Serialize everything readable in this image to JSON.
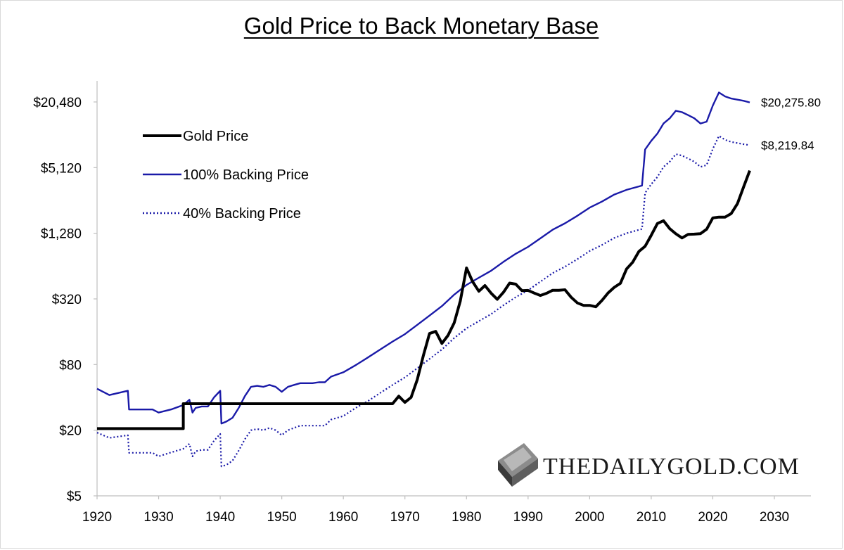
{
  "chart_data": {
    "type": "line",
    "title": "Gold Price to Back Monetary Base",
    "xlabel": "",
    "ylabel": "",
    "y_scale": "log2",
    "xlim": [
      1920,
      2035
    ],
    "ylim": [
      5,
      40960
    ],
    "x_ticks": [
      1920,
      1930,
      1940,
      1950,
      1960,
      1970,
      1980,
      1990,
      2000,
      2010,
      2020,
      2030
    ],
    "y_ticks": [
      5,
      20,
      80,
      320,
      1280,
      5120,
      20480
    ],
    "y_tick_labels": [
      "$5",
      "$20",
      "$80",
      "$320",
      "$1,280",
      "$5,120",
      "$20,480"
    ],
    "legend_position": "upper-left",
    "grid": false,
    "series": [
      {
        "name": "Gold Price",
        "color": "#000000",
        "style": "solid",
        "points": [
          [
            1920,
            20.67
          ],
          [
            1934,
            20.67
          ],
          [
            1934,
            35
          ],
          [
            1968,
            35
          ],
          [
            1969,
            41
          ],
          [
            1970,
            36
          ],
          [
            1971,
            40
          ],
          [
            1972,
            58
          ],
          [
            1973,
            97
          ],
          [
            1974,
            154
          ],
          [
            1975,
            161
          ],
          [
            1976,
            125
          ],
          [
            1977,
            148
          ],
          [
            1978,
            193
          ],
          [
            1979,
            307
          ],
          [
            1980,
            615
          ],
          [
            1981,
            460
          ],
          [
            1982,
            376
          ],
          [
            1983,
            424
          ],
          [
            1984,
            361
          ],
          [
            1985,
            317
          ],
          [
            1986,
            368
          ],
          [
            1987,
            447
          ],
          [
            1988,
            437
          ],
          [
            1989,
            381
          ],
          [
            1990,
            383
          ],
          [
            1991,
            362
          ],
          [
            1992,
            344
          ],
          [
            1993,
            360
          ],
          [
            1994,
            384
          ],
          [
            1995,
            384
          ],
          [
            1996,
            388
          ],
          [
            1997,
            331
          ],
          [
            1998,
            294
          ],
          [
            1999,
            279
          ],
          [
            2000,
            279
          ],
          [
            2001,
            271
          ],
          [
            2002,
            310
          ],
          [
            2003,
            363
          ],
          [
            2004,
            409
          ],
          [
            2005,
            445
          ],
          [
            2006,
            603
          ],
          [
            2007,
            695
          ],
          [
            2008,
            872
          ],
          [
            2009,
            972
          ],
          [
            2010,
            1225
          ],
          [
            2011,
            1571
          ],
          [
            2012,
            1669
          ],
          [
            2013,
            1411
          ],
          [
            2014,
            1266
          ],
          [
            2015,
            1160
          ],
          [
            2016,
            1250
          ],
          [
            2017,
            1257
          ],
          [
            2018,
            1268
          ],
          [
            2019,
            1393
          ],
          [
            2020,
            1770
          ],
          [
            2021,
            1799
          ],
          [
            2022,
            1800
          ],
          [
            2023,
            1940
          ],
          [
            2024,
            2390
          ],
          [
            2025,
            3400
          ],
          [
            2026,
            4800
          ]
        ]
      },
      {
        "name": "100% Backing Price",
        "color": "#1a1aa8",
        "style": "solid",
        "end_label": "$20,275.80",
        "points": [
          [
            1920,
            48
          ],
          [
            1922,
            42
          ],
          [
            1925,
            46
          ],
          [
            1925.2,
            31
          ],
          [
            1929,
            31
          ],
          [
            1930,
            29
          ],
          [
            1932,
            31
          ],
          [
            1934,
            34
          ],
          [
            1935,
            38
          ],
          [
            1935.5,
            29
          ],
          [
            1936,
            32
          ],
          [
            1937,
            33
          ],
          [
            1938,
            33
          ],
          [
            1939,
            40
          ],
          [
            1940,
            46
          ],
          [
            1940.2,
            23
          ],
          [
            1941,
            24
          ],
          [
            1942,
            26
          ],
          [
            1943,
            32
          ],
          [
            1944,
            41
          ],
          [
            1945,
            50
          ],
          [
            1946,
            51
          ],
          [
            1947,
            50
          ],
          [
            1948,
            52
          ],
          [
            1949,
            50
          ],
          [
            1950,
            45
          ],
          [
            1951,
            50
          ],
          [
            1952,
            52
          ],
          [
            1953,
            54
          ],
          [
            1954,
            54
          ],
          [
            1955,
            54
          ],
          [
            1956,
            55
          ],
          [
            1957,
            55
          ],
          [
            1958,
            62
          ],
          [
            1960,
            68
          ],
          [
            1962,
            79
          ],
          [
            1964,
            93
          ],
          [
            1966,
            110
          ],
          [
            1968,
            130
          ],
          [
            1970,
            152
          ],
          [
            1972,
            185
          ],
          [
            1974,
            225
          ],
          [
            1976,
            275
          ],
          [
            1978,
            350
          ],
          [
            1980,
            430
          ],
          [
            1982,
            500
          ],
          [
            1984,
            580
          ],
          [
            1986,
            700
          ],
          [
            1988,
            830
          ],
          [
            1990,
            960
          ],
          [
            1992,
            1150
          ],
          [
            1994,
            1380
          ],
          [
            1996,
            1580
          ],
          [
            1998,
            1850
          ],
          [
            2000,
            2200
          ],
          [
            2002,
            2500
          ],
          [
            2004,
            2900
          ],
          [
            2006,
            3200
          ],
          [
            2008.5,
            3500
          ],
          [
            2008.8,
            5500
          ],
          [
            2009,
            7500
          ],
          [
            2010,
            9000
          ],
          [
            2011,
            10500
          ],
          [
            2012,
            13000
          ],
          [
            2013,
            14500
          ],
          [
            2014,
            17000
          ],
          [
            2015,
            16500
          ],
          [
            2016,
            15500
          ],
          [
            2017,
            14500
          ],
          [
            2018,
            13000
          ],
          [
            2019,
            13500
          ],
          [
            2020,
            19000
          ],
          [
            2021,
            25000
          ],
          [
            2022,
            23000
          ],
          [
            2023,
            22000
          ],
          [
            2024,
            21500
          ],
          [
            2025,
            21000
          ],
          [
            2026,
            20275.8
          ]
        ]
      },
      {
        "name": "40% Backing Price",
        "color": "#1a1aa8",
        "style": "dotted",
        "end_label": "$8,219.84",
        "points": [
          [
            1920,
            19
          ],
          [
            1922,
            17
          ],
          [
            1925,
            18
          ],
          [
            1925.2,
            12.4
          ],
          [
            1929,
            12.4
          ],
          [
            1930,
            11.5
          ],
          [
            1932,
            12.5
          ],
          [
            1934,
            13.5
          ],
          [
            1935,
            15
          ],
          [
            1935.5,
            11.5
          ],
          [
            1936,
            12.8
          ],
          [
            1937,
            13.2
          ],
          [
            1938,
            13.2
          ],
          [
            1939,
            16
          ],
          [
            1940,
            18.5
          ],
          [
            1940.2,
            9.3
          ],
          [
            1941,
            9.6
          ],
          [
            1942,
            10.5
          ],
          [
            1943,
            13
          ],
          [
            1944,
            16.5
          ],
          [
            1945,
            20
          ],
          [
            1946,
            20.5
          ],
          [
            1947,
            20
          ],
          [
            1948,
            21
          ],
          [
            1949,
            20
          ],
          [
            1950,
            18
          ],
          [
            1951,
            20
          ],
          [
            1952,
            21
          ],
          [
            1953,
            22
          ],
          [
            1954,
            22
          ],
          [
            1955,
            22
          ],
          [
            1956,
            22
          ],
          [
            1957,
            22
          ],
          [
            1958,
            25
          ],
          [
            1960,
            27
          ],
          [
            1962,
            32
          ],
          [
            1964,
            37
          ],
          [
            1966,
            44
          ],
          [
            1968,
            52
          ],
          [
            1970,
            61
          ],
          [
            1972,
            74
          ],
          [
            1974,
            90
          ],
          [
            1976,
            110
          ],
          [
            1978,
            140
          ],
          [
            1980,
            172
          ],
          [
            1982,
            200
          ],
          [
            1984,
            232
          ],
          [
            1986,
            280
          ],
          [
            1988,
            332
          ],
          [
            1990,
            384
          ],
          [
            1992,
            460
          ],
          [
            1994,
            552
          ],
          [
            1996,
            632
          ],
          [
            1998,
            740
          ],
          [
            2000,
            880
          ],
          [
            2002,
            1000
          ],
          [
            2004,
            1160
          ],
          [
            2006,
            1280
          ],
          [
            2008.5,
            1400
          ],
          [
            2008.8,
            2200
          ],
          [
            2009,
            3000
          ],
          [
            2010,
            3600
          ],
          [
            2011,
            4200
          ],
          [
            2012,
            5200
          ],
          [
            2013,
            5800
          ],
          [
            2014,
            6800
          ],
          [
            2015,
            6600
          ],
          [
            2016,
            6200
          ],
          [
            2017,
            5800
          ],
          [
            2018,
            5200
          ],
          [
            2019,
            5400
          ],
          [
            2020,
            7600
          ],
          [
            2021,
            10000
          ],
          [
            2022,
            9200
          ],
          [
            2023,
            8800
          ],
          [
            2024,
            8600
          ],
          [
            2025,
            8400
          ],
          [
            2026,
            8219.84
          ]
        ]
      }
    ]
  },
  "logo": {
    "text": "THEDAILYGOLD.COM"
  }
}
